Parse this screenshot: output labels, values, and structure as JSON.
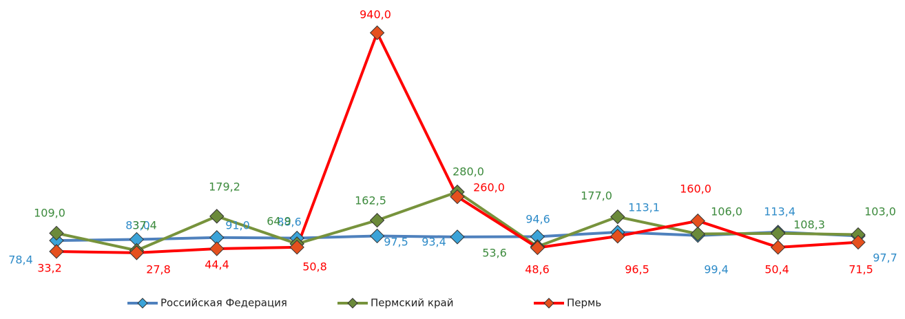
{
  "chart_data": {
    "type": "line",
    "ylim": [
      0,
      1000
    ],
    "series": [
      {
        "name": "Российская Федерация",
        "color": "#4f81bd",
        "marker_color": "#3ba3d8",
        "label_color": "#2e8bc8",
        "values": [
          78.4,
          83.0,
          91.0,
          88.6,
          97.5,
          93.4,
          94.6,
          113.1,
          99.4,
          113.4,
          97.7
        ],
        "value_labels": [
          "78,4",
          "83,0",
          "91,0",
          "88,6",
          "97,5",
          "93,4",
          "94,6",
          "113,1",
          "99,4",
          "113,4",
          "97,7"
        ]
      },
      {
        "name": "Пермский край",
        "color": "#77933c",
        "marker_color": "#6b8a3a",
        "label_color": "#3c8a3c",
        "values": [
          109.0,
          37.4,
          179.2,
          64.9,
          162.5,
          280.0,
          53.6,
          177.0,
          106.0,
          108.3,
          103.0
        ],
        "value_labels": [
          "109,0",
          "37,4",
          "179,2",
          "64,9",
          "162,5",
          "280,0",
          "53,6",
          "177,0",
          "106,0",
          "108,3",
          "103,0"
        ]
      },
      {
        "name": "Пермь",
        "color": "#ff0000",
        "marker_color": "#e5501e",
        "label_color": "#ff0000",
        "values": [
          33.2,
          27.8,
          44.4,
          50.8,
          940.0,
          260.0,
          48.6,
          96.5,
          160.0,
          50.4,
          71.5
        ],
        "value_labels": [
          "33,2",
          "27,8",
          "44,4",
          "50,8",
          "940,0",
          "260,0",
          "48,6",
          "96,5",
          "160,0",
          "50,4",
          "71,5"
        ]
      }
    ],
    "legend": "bottom"
  }
}
